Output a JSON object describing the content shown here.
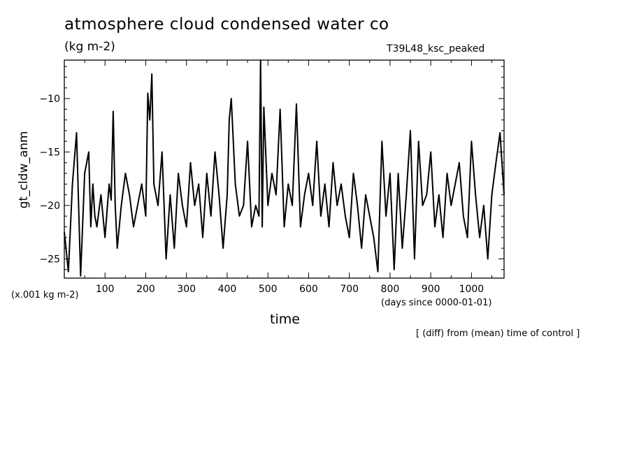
{
  "header": {
    "title": "atmosphere cloud condensed water co",
    "units": "(kg m-2)",
    "run_name": "T39L48_ksc_peaked"
  },
  "footer": {
    "note": "[ (diff) from (mean) time of control ]"
  },
  "chart_data": {
    "type": "line",
    "title": "atmosphere cloud condensed water co",
    "xlabel": "time",
    "xunits": "(days since 0000-01-01)",
    "ylabel": "gt_cldw_anm",
    "yscale_note": "(x.001 kg m-2)",
    "xlim": [
      0,
      1080
    ],
    "ylim": [
      -26.8,
      -6.4
    ],
    "x_ticks": [
      100,
      200,
      300,
      400,
      500,
      600,
      700,
      800,
      900,
      1000
    ],
    "y_ticks": [
      -25,
      -20,
      -15,
      -10
    ],
    "grid": false,
    "series": [
      {
        "color": "#000000",
        "x": [
          0,
          10,
          20,
          30,
          40,
          50,
          60,
          65,
          70,
          75,
          80,
          90,
          100,
          110,
          115,
          120,
          125,
          130,
          140,
          150,
          160,
          170,
          180,
          190,
          200,
          205,
          210,
          215,
          220,
          230,
          240,
          250,
          260,
          270,
          280,
          290,
          300,
          310,
          320,
          330,
          340,
          350,
          360,
          370,
          380,
          390,
          400,
          405,
          410,
          420,
          430,
          440,
          450,
          460,
          470,
          478,
          482,
          486,
          490,
          500,
          510,
          520,
          530,
          540,
          550,
          560,
          570,
          580,
          590,
          600,
          610,
          620,
          630,
          640,
          650,
          660,
          670,
          680,
          690,
          700,
          710,
          720,
          730,
          740,
          750,
          760,
          770,
          775,
          780,
          790,
          800,
          810,
          820,
          830,
          840,
          850,
          860,
          870,
          880,
          890,
          900,
          910,
          920,
          930,
          940,
          950,
          960,
          970,
          980,
          990,
          1000,
          1010,
          1020,
          1030,
          1040,
          1050,
          1060,
          1070,
          1080
        ],
        "y": [
          -22.5,
          -26.2,
          -18,
          -13.2,
          -26.6,
          -17,
          -15,
          -22,
          -18,
          -21,
          -22,
          -19,
          -23,
          -18,
          -19.5,
          -11.2,
          -20,
          -24,
          -20,
          -17,
          -19,
          -22,
          -20,
          -18,
          -21,
          -9.5,
          -12,
          -7.7,
          -18,
          -20,
          -15,
          -25,
          -19,
          -24,
          -17,
          -20,
          -22,
          -16,
          -20,
          -18,
          -23,
          -17,
          -21,
          -15,
          -19,
          -24,
          -19,
          -12,
          -10,
          -18,
          -21,
          -20,
          -14,
          -22,
          -20,
          -21,
          -6.4,
          -22,
          -10.8,
          -20,
          -17,
          -19,
          -11,
          -22,
          -18,
          -20,
          -10.5,
          -22,
          -19,
          -17,
          -20,
          -14,
          -21,
          -18,
          -22,
          -16,
          -20,
          -18,
          -21,
          -23,
          -17,
          -20,
          -24,
          -19,
          -21,
          -23,
          -26.2,
          -20,
          -14,
          -21,
          -17,
          -26,
          -17,
          -24,
          -19,
          -13,
          -25,
          -14,
          -20,
          -19,
          -15,
          -22,
          -19,
          -23,
          -17,
          -20,
          -18,
          -16,
          -21,
          -23,
          -14,
          -19,
          -23,
          -20,
          -25,
          -19,
          -16,
          -13.2,
          -19
        ]
      }
    ]
  }
}
